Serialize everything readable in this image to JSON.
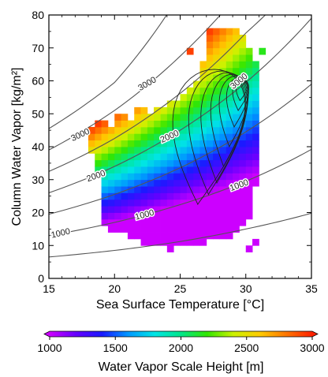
{
  "chart_data": {
    "type": "heatmap",
    "xlabel": "Sea Surface Temperature [°C]",
    "ylabel": "Column Water Vapor [kg/m²]",
    "xlim": [
      15,
      35
    ],
    "ylim": [
      0,
      80
    ],
    "xticks": [
      15,
      20,
      25,
      30,
      35
    ],
    "yticks": [
      0,
      10,
      20,
      30,
      40,
      50,
      60,
      70,
      80
    ],
    "xtick_labels": [
      "15",
      "20",
      "25",
      "30",
      "35"
    ],
    "ytick_labels": [
      "0",
      "10",
      "20",
      "30",
      "40",
      "50",
      "60",
      "70",
      "80"
    ],
    "colorbar": {
      "label": "Water Vapor Scale Height [m]",
      "range": [
        1000,
        3000
      ],
      "ticks": [
        1000,
        1500,
        2000,
        2500,
        3000
      ],
      "tick_labels": [
        "1000",
        "1500",
        "2000",
        "2500",
        "3000"
      ],
      "colors": [
        "#cc00ff",
        "#6600ff",
        "#1a1aff",
        "#0099ff",
        "#00e5e5",
        "#00e68a",
        "#33e600",
        "#ccf200",
        "#ffcc00",
        "#ff7700",
        "#ff2200"
      ]
    },
    "scale_height_isolines": [
      {
        "label": "1000",
        "points": [
          [
            15,
            6.5
          ],
          [
            20,
            8.5
          ],
          [
            25,
            11.2
          ],
          [
            30,
            15.0
          ],
          [
            35,
            19.8
          ]
        ]
      },
      {
        "label": "1000",
        "points": [
          [
            15,
            13.0
          ],
          [
            20,
            17.0
          ],
          [
            25,
            22.4
          ],
          [
            30,
            29.5
          ],
          [
            35,
            39.2
          ]
        ]
      },
      {
        "label": "2000",
        "points": [
          [
            15,
            19.5
          ],
          [
            20,
            25.5
          ],
          [
            25,
            33.6
          ],
          [
            30,
            44.5
          ],
          [
            35,
            59.0
          ]
        ]
      },
      {
        "label": "2000",
        "points": [
          [
            15,
            26.0
          ],
          [
            20,
            34.0
          ],
          [
            25,
            45.0
          ],
          [
            30,
            59.5
          ],
          [
            35,
            79.0
          ]
        ]
      },
      {
        "label": "3000",
        "points": [
          [
            15,
            32.5
          ],
          [
            20,
            42.5
          ],
          [
            25,
            56.2
          ],
          [
            30,
            74.5
          ],
          [
            32,
            82.0
          ]
        ]
      },
      {
        "label": "3000",
        "points": [
          [
            15,
            39.0
          ],
          [
            20,
            51.0
          ],
          [
            25,
            67.5
          ],
          [
            28.5,
            82.0
          ]
        ]
      },
      {
        "label": "",
        "points": [
          [
            15,
            45.5
          ],
          [
            20,
            59.5
          ],
          [
            24.3,
            82.0
          ]
        ]
      }
    ],
    "isoline_labels": [
      {
        "text": "1000",
        "x": 15.9,
        "y": 13.6,
        "angle": -13
      },
      {
        "text": "1000",
        "x": 22.3,
        "y": 19.2,
        "angle": -15
      },
      {
        "text": "1000",
        "x": 29.5,
        "y": 28.2,
        "angle": -20
      },
      {
        "text": "2000",
        "x": 18.6,
        "y": 31.0,
        "angle": -20
      },
      {
        "text": "2000",
        "x": 24.2,
        "y": 43.0,
        "angle": -24
      },
      {
        "text": "3000",
        "x": 17.4,
        "y": 43.5,
        "angle": -25
      },
      {
        "text": "3000",
        "x": 22.5,
        "y": 59.0,
        "angle": -30
      },
      {
        "text": "3000",
        "x": 29.5,
        "y": 59.8,
        "angle": -40
      }
    ],
    "scatter_density_contours": {
      "center": [
        29.6,
        57.0
      ],
      "levels": [
        {
          "x_left": 24.0,
          "x_right": 31.2,
          "y_bottom": 22.5,
          "y_top": 63.5
        },
        {
          "x_left": 25.3,
          "x_right": 31.0,
          "y_bottom": 25.5,
          "y_top": 63.0
        },
        {
          "x_left": 26.3,
          "x_right": 30.9,
          "y_bottom": 29.0,
          "y_top": 62.5
        },
        {
          "x_left": 27.1,
          "x_right": 30.8,
          "y_bottom": 34.0,
          "y_top": 62.0
        },
        {
          "x_left": 27.8,
          "x_right": 30.7,
          "y_bottom": 40.0,
          "y_top": 61.5
        },
        {
          "x_left": 28.4,
          "x_right": 30.6,
          "y_bottom": 46.0,
          "y_top": 61.0
        },
        {
          "x_left": 28.9,
          "x_right": 30.5,
          "y_bottom": 51.0,
          "y_top": 60.5
        },
        {
          "x_left": 29.2,
          "x_right": 30.3,
          "y_bottom": 54.0,
          "y_top": 59.8
        }
      ]
    },
    "grid": {
      "x0": 18.0,
      "dx": 0.5,
      "y0": 8.0,
      "dy": 2.0,
      "rows": [
        {
          "y": 8,
          "x_start": 24.0,
          "x_end": 24.5
        },
        {
          "y": 10,
          "x_start": 22.0,
          "x_end": 27.0
        },
        {
          "y": 12,
          "x_start": 21.0,
          "x_end": 29.0
        },
        {
          "y": 14,
          "x_start": 19.5,
          "x_end": 29.5
        },
        {
          "y": 16,
          "x_start": 19.0,
          "x_end": 30.0
        },
        {
          "y": 18,
          "x_start": 19.0,
          "x_end": 30.5
        },
        {
          "y": 20,
          "x_start": 19.0,
          "x_end": 30.5
        },
        {
          "y": 22,
          "x_start": 19.0,
          "x_end": 30.5
        },
        {
          "y": 24,
          "x_start": 19.0,
          "x_end": 30.5
        },
        {
          "y": 26,
          "x_start": 19.0,
          "x_end": 30.5
        },
        {
          "y": 28,
          "x_start": 19.0,
          "x_end": 31.0
        },
        {
          "y": 30,
          "x_start": 19.0,
          "x_end": 31.0
        },
        {
          "y": 32,
          "x_start": 18.5,
          "x_end": 31.0
        },
        {
          "y": 34,
          "x_start": 18.5,
          "x_end": 31.0
        },
        {
          "y": 36,
          "x_start": 18.5,
          "x_end": 31.0
        },
        {
          "y": 38,
          "x_start": 18.0,
          "x_end": 31.0
        },
        {
          "y": 40,
          "x_start": 18.0,
          "x_end": 31.0
        },
        {
          "y": 42,
          "x_start": 18.0,
          "x_end": 31.0
        },
        {
          "y": 44,
          "x_start": 18.5,
          "x_end": 31.0
        },
        {
          "y": 46,
          "x_start": 20.0,
          "x_end": 31.0
        },
        {
          "y": 48,
          "x_start": 21.5,
          "x_end": 31.0
        },
        {
          "y": 50,
          "x_start": 23.0,
          "x_end": 31.0
        },
        {
          "y": 52,
          "x_start": 24.0,
          "x_end": 31.0
        },
        {
          "y": 54,
          "x_start": 25.0,
          "x_end": 31.0
        },
        {
          "y": 56,
          "x_start": 25.5,
          "x_end": 31.0
        },
        {
          "y": 58,
          "x_start": 26.0,
          "x_end": 31.0
        },
        {
          "y": 60,
          "x_start": 26.5,
          "x_end": 31.0
        },
        {
          "y": 62,
          "x_start": 26.5,
          "x_end": 31.0
        },
        {
          "y": 64,
          "x_start": 26.5,
          "x_end": 31.0
        },
        {
          "y": 66,
          "x_start": 27.0,
          "x_end": 30.5
        },
        {
          "y": 68,
          "x_start": 27.0,
          "x_end": 30.5
        },
        {
          "y": 70,
          "x_start": 27.0,
          "x_end": 30.0
        },
        {
          "y": 72,
          "x_start": 27.0,
          "x_end": 30.0
        },
        {
          "y": 74,
          "x_start": 27.0,
          "x_end": 29.5
        }
      ],
      "extra_cells": [
        [
          18.0,
          44
        ],
        [
          18.5,
          46
        ],
        [
          19.0,
          46
        ],
        [
          20.0,
          48
        ],
        [
          20.5,
          48
        ],
        [
          21.5,
          50
        ],
        [
          22.0,
          50
        ],
        [
          23.0,
          50
        ],
        [
          25.5,
          68
        ],
        [
          31.0,
          68
        ],
        [
          30.0,
          8
        ],
        [
          30.5,
          10
        ]
      ]
    }
  }
}
